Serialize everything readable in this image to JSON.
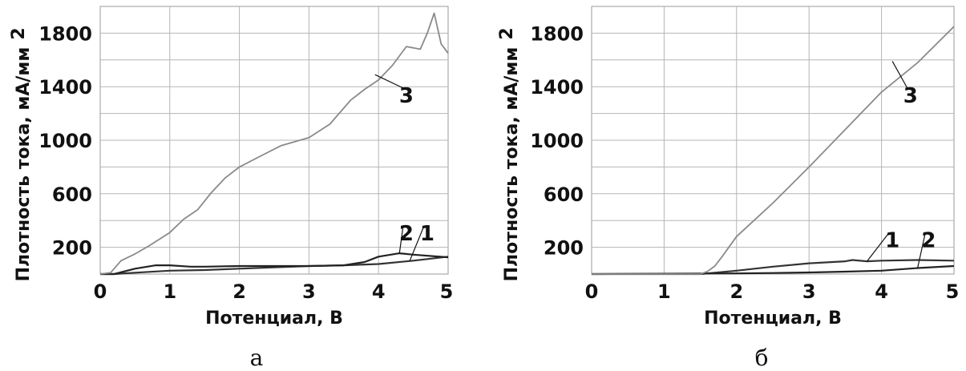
{
  "chart_data": [
    {
      "type": "line",
      "panel_label": "а",
      "xlabel": "Потенциал, В",
      "ylabel": "Плотность тока, мА/мм",
      "ylabel_sup": "2",
      "xlim": [
        0,
        5
      ],
      "ylim": [
        0,
        2000
      ],
      "xticks": [
        "0",
        "1",
        "2",
        "3",
        "4",
        "5"
      ],
      "yticks": [
        "200",
        "600",
        "1000",
        "1400",
        "1800"
      ],
      "grid": true,
      "series": [
        {
          "name": "1",
          "color": "#333333",
          "x": [
            0,
            0.2,
            0.5,
            1.0,
            1.5,
            2.0,
            2.5,
            3.0,
            3.5,
            4.0,
            4.5,
            5.0
          ],
          "y": [
            0,
            0,
            10,
            25,
            30,
            40,
            50,
            60,
            65,
            75,
            100,
            130
          ]
        },
        {
          "name": "2",
          "color": "#222222",
          "x": [
            0,
            0.2,
            0.5,
            0.8,
            1.0,
            1.3,
            1.5,
            2.0,
            2.5,
            3.0,
            3.5,
            3.8,
            4.0,
            4.3,
            4.5,
            5.0
          ],
          "y": [
            0,
            0,
            40,
            65,
            65,
            55,
            55,
            60,
            60,
            60,
            65,
            90,
            130,
            155,
            145,
            125
          ]
        },
        {
          "name": "3",
          "color": "#8a8a8a",
          "x": [
            0,
            0.15,
            0.3,
            0.5,
            0.7,
            1.0,
            1.2,
            1.4,
            1.6,
            1.8,
            2.0,
            2.3,
            2.6,
            3.0,
            3.3,
            3.6,
            3.8,
            4.0,
            4.2,
            4.4,
            4.6,
            4.7,
            4.8,
            4.9,
            5.0
          ],
          "y": [
            0,
            10,
            100,
            150,
            210,
            310,
            410,
            480,
            610,
            720,
            800,
            880,
            960,
            1020,
            1120,
            1300,
            1380,
            1450,
            1560,
            1700,
            1680,
            1800,
            1950,
            1720,
            1650
          ]
        }
      ],
      "annotations": [
        {
          "text": "3",
          "x": 4.4,
          "y": 1330,
          "target_x": 3.95,
          "target_y": 1490
        },
        {
          "text": "2",
          "x": 4.4,
          "y": 300,
          "target_x": 4.3,
          "target_y": 155
        },
        {
          "text": "1",
          "x": 4.7,
          "y": 300,
          "target_x": 4.45,
          "target_y": 100
        }
      ]
    },
    {
      "type": "line",
      "panel_label": "б",
      "xlabel": "Потенциал, В",
      "ylabel": "Плотность тока, мА/мм",
      "ylabel_sup": "2",
      "xlim": [
        0,
        5
      ],
      "ylim": [
        0,
        2000
      ],
      "xticks": [
        "0",
        "1",
        "2",
        "3",
        "4",
        "5"
      ],
      "yticks": [
        "200",
        "600",
        "1000",
        "1400",
        "1800"
      ],
      "grid": true,
      "series": [
        {
          "name": "1",
          "color": "#333333",
          "x": [
            0,
            1.5,
            2.0,
            2.5,
            3.0,
            3.5,
            3.6,
            3.8,
            4.0,
            4.5,
            5.0
          ],
          "y": [
            0,
            0,
            25,
            55,
            80,
            95,
            105,
            95,
            100,
            105,
            100
          ]
        },
        {
          "name": "2",
          "color": "#222222",
          "x": [
            0,
            2.0,
            2.5,
            3.0,
            3.5,
            4.0,
            4.5,
            5.0
          ],
          "y": [
            0,
            5,
            8,
            12,
            18,
            25,
            45,
            60
          ]
        },
        {
          "name": "3",
          "color": "#8a8a8a",
          "x": [
            0,
            1.5,
            1.6,
            1.7,
            1.8,
            2.0,
            2.5,
            3.0,
            3.5,
            4.0,
            4.5,
            5.0
          ],
          "y": [
            0,
            0,
            20,
            60,
            130,
            280,
            530,
            800,
            1080,
            1360,
            1580,
            1850
          ]
        }
      ],
      "annotations": [
        {
          "text": "3",
          "x": 4.4,
          "y": 1330,
          "target_x": 4.15,
          "target_y": 1590
        },
        {
          "text": "1",
          "x": 4.15,
          "y": 250,
          "target_x": 3.8,
          "target_y": 95
        },
        {
          "text": "2",
          "x": 4.65,
          "y": 250,
          "target_x": 4.5,
          "target_y": 50
        }
      ]
    }
  ]
}
